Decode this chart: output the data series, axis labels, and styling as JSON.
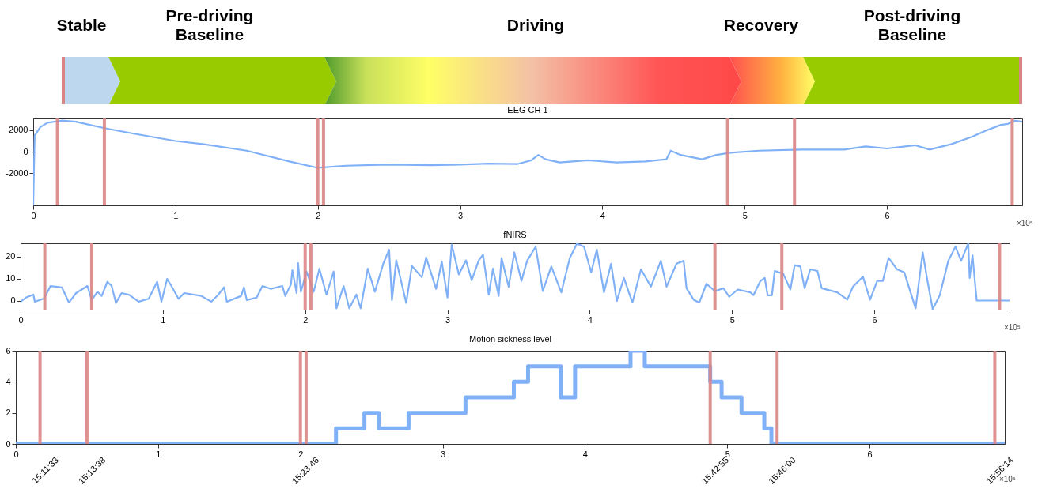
{
  "chart_data": [
    {
      "type": "other",
      "annotations": [
        "Stable",
        "Pre-driving Baseline",
        "Driving",
        "Recovery",
        "Post-driving Baseline"
      ]
    },
    {
      "type": "line",
      "title": "EEG CH 1",
      "color": "#80b1f7",
      "grid": false,
      "xlim": [
        0,
        6.95
      ],
      "xticks": [
        0,
        1,
        2,
        3,
        4,
        5,
        6
      ],
      "ylim": [
        -5000,
        3100
      ],
      "yticks": [
        -2000,
        0,
        2000
      ],
      "annotations": [
        "×10⁵"
      ],
      "x": [
        0,
        0.01,
        0.05,
        0.1,
        0.2,
        0.3,
        0.5,
        0.7,
        1.0,
        1.2,
        1.5,
        1.8,
        2.0,
        2.2,
        2.5,
        2.8,
        3.0,
        3.2,
        3.4,
        3.5,
        3.55,
        3.6,
        3.7,
        3.9,
        4.1,
        4.3,
        4.45,
        4.48,
        4.55,
        4.7,
        4.8,
        4.9,
        5.1,
        5.4,
        5.7,
        5.85,
        6.0,
        6.2,
        6.3,
        6.45,
        6.6,
        6.7,
        6.8,
        6.85,
        6.9,
        6.95
      ],
      "values": [
        -5000,
        1500,
        2300,
        2700,
        2900,
        2800,
        2200,
        1700,
        1000,
        700,
        100,
        -900,
        -1500,
        -1300,
        -1200,
        -1250,
        -1200,
        -1100,
        -1150,
        -800,
        -300,
        -700,
        -1000,
        -800,
        -1000,
        -900,
        -700,
        100,
        -300,
        -700,
        -300,
        -100,
        100,
        200,
        200,
        500,
        300,
        600,
        200,
        700,
        1400,
        2000,
        2500,
        2600,
        2900,
        2800
      ],
      "ref_lines": [
        {
          "axis": "x",
          "value": 0.17,
          "color": "#d98585"
        },
        {
          "axis": "x",
          "value": 0.5,
          "color": "#d98585"
        },
        {
          "axis": "x",
          "value": 2.0,
          "color": "#d98585"
        },
        {
          "axis": "x",
          "value": 2.04,
          "color": "#d98585"
        },
        {
          "axis": "x",
          "value": 4.88,
          "color": "#d98585"
        },
        {
          "axis": "x",
          "value": 5.35,
          "color": "#d98585"
        },
        {
          "axis": "x",
          "value": 6.88,
          "color": "#d98585"
        }
      ]
    },
    {
      "type": "line",
      "title": "fNIRS",
      "color": "#80b1f7",
      "grid": false,
      "xlim": [
        0,
        6.95
      ],
      "xticks": [
        0,
        1,
        2,
        3,
        4,
        5,
        6
      ],
      "ylim": [
        -4,
        26
      ],
      "yticks": [
        0,
        10,
        20
      ],
      "annotations": [
        "×10⁵"
      ],
      "x": [
        0,
        0.04,
        0.09,
        0.1,
        0.16,
        0.18,
        0.21,
        0.29,
        0.34,
        0.39,
        0.47,
        0.5,
        0.54,
        0.57,
        0.61,
        0.64,
        0.67,
        0.71,
        0.76,
        0.83,
        0.9,
        0.96,
        0.99,
        1.03,
        1.06,
        1.11,
        1.15,
        1.27,
        1.34,
        1.39,
        1.43,
        1.45,
        1.55,
        1.57,
        1.59,
        1.66,
        1.7,
        1.76,
        1.84,
        1.86,
        1.9,
        1.91,
        1.94,
        1.95,
        1.97,
        2.01,
        2.06,
        2.1,
        2.15,
        2.2,
        2.22,
        2.27,
        2.31,
        2.36,
        2.39,
        2.44,
        2.49,
        2.55,
        2.59,
        2.61,
        2.64,
        2.71,
        2.75,
        2.82,
        2.85,
        2.92,
        2.96,
        3.0,
        3.03,
        3.08,
        3.13,
        3.17,
        3.22,
        3.25,
        3.29,
        3.32,
        3.36,
        3.38,
        3.43,
        3.47,
        3.52,
        3.56,
        3.62,
        3.67,
        3.73,
        3.8,
        3.86,
        3.91,
        3.96,
        4.01,
        4.05,
        4.1,
        4.15,
        4.19,
        4.24,
        4.3,
        4.36,
        4.43,
        4.5,
        4.54,
        4.61,
        4.66,
        4.68,
        4.73,
        4.77,
        4.82,
        4.88,
        4.94,
        4.98,
        5.04,
        5.13,
        5.15,
        5.2,
        5.23,
        5.25,
        5.28,
        5.3,
        5.36,
        5.41,
        5.44,
        5.48,
        5.51,
        5.55,
        5.6,
        5.63,
        5.74,
        5.81,
        5.85,
        5.92,
        5.97,
        6.02,
        6.06,
        6.1,
        6.16,
        6.21,
        6.29,
        6.34,
        6.37,
        6.41,
        6.46,
        6.52,
        6.57,
        6.61,
        6.66,
        6.67,
        6.69,
        6.71,
        6.72,
        6.9,
        6.95
      ],
      "values": [
        -0.4,
        1.5,
        2.8,
        -0.4,
        0.9,
        2.8,
        6.7,
        6.1,
        -0.8,
        3.5,
        6.7,
        0.3,
        4.1,
        2.2,
        8.6,
        6.7,
        -1.0,
        3.5,
        2.8,
        -0.4,
        0.9,
        8.6,
        -0.4,
        9.9,
        6.7,
        0.9,
        3.5,
        2.2,
        -0.4,
        2.8,
        6.1,
        -0.4,
        2.2,
        6.1,
        0.3,
        1.5,
        6.7,
        5.4,
        6.7,
        2.2,
        7.4,
        13.8,
        3.5,
        17.0,
        4.1,
        13.2,
        4.1,
        14.5,
        2.8,
        13.2,
        -3.4,
        6.7,
        -3.4,
        2.8,
        -3.4,
        14.5,
        4.1,
        17.0,
        23.1,
        0.3,
        18.3,
        -1.0,
        15.7,
        10.6,
        19.6,
        5.4,
        17.7,
        1.5,
        25.4,
        11.9,
        18.3,
        9.3,
        18.3,
        20.9,
        2.8,
        14.5,
        2.2,
        19.4,
        6.4,
        21.9,
        9.0,
        18.1,
        24.5,
        4.4,
        15.5,
        3.8,
        19.4,
        25.8,
        24.5,
        12.9,
        23.2,
        3.8,
        16.8,
        -0.1,
        10.3,
        -0.8,
        14.2,
        6.4,
        18.1,
        6.4,
        16.8,
        18.1,
        5.7,
        0.5,
        -0.8,
        7.7,
        4.4,
        5.7,
        1.8,
        5.1,
        3.8,
        2.5,
        9.0,
        10.3,
        2.5,
        2.5,
        13.5,
        12.2,
        5.1,
        16.1,
        15.5,
        5.7,
        14.2,
        13.5,
        5.7,
        3.8,
        0.5,
        6.4,
        10.9,
        0.5,
        9.0,
        9.0,
        19.4,
        14.2,
        12.9,
        -3.4,
        21.9,
        10.3,
        -3.8,
        2.5,
        18.1,
        24.5,
        18.1,
        25.9,
        10.3,
        20.6,
        6.4,
        0.1,
        0.1,
        0.1
      ],
      "ref_lines": [
        {
          "axis": "x",
          "value": 0.17,
          "color": "#d98585"
        },
        {
          "axis": "x",
          "value": 0.5,
          "color": "#d98585"
        },
        {
          "axis": "x",
          "value": 2.0,
          "color": "#d98585"
        },
        {
          "axis": "x",
          "value": 2.04,
          "color": "#d98585"
        },
        {
          "axis": "x",
          "value": 4.88,
          "color": "#d98585"
        },
        {
          "axis": "x",
          "value": 5.35,
          "color": "#d98585"
        },
        {
          "axis": "x",
          "value": 6.88,
          "color": "#d98585"
        }
      ]
    },
    {
      "type": "step",
      "title": "Motion sickness level",
      "color": "#80b1f7",
      "grid": false,
      "xlim": [
        0,
        6.95
      ],
      "xticks": [
        0,
        1,
        2,
        3,
        4,
        5,
        6
      ],
      "ylim": [
        0,
        6
      ],
      "yticks": [
        0,
        2,
        4,
        6
      ],
      "annotations": [
        "×10⁵",
        {
          "text": "15:11:33",
          "x": 0.17,
          "y": 0
        },
        {
          "text": "15:13:38",
          "x": 0.5,
          "y": 0
        },
        {
          "text": "15:23:46",
          "x": 2.0,
          "y": 0
        },
        {
          "text": "15:42:55",
          "x": 4.88,
          "y": 0
        },
        {
          "text": "15:46:00",
          "x": 5.35,
          "y": 0
        },
        {
          "text": "15:56:14",
          "x": 6.88,
          "y": 0
        }
      ],
      "x": [
        0,
        2.25,
        2.45,
        2.55,
        2.76,
        3.16,
        3.5,
        3.6,
        3.83,
        3.93,
        4.32,
        4.42,
        4.88,
        4.96,
        5.1,
        5.26,
        5.31,
        6.95
      ],
      "values": [
        0,
        1,
        2,
        1,
        2,
        3,
        4,
        5,
        3,
        5,
        6,
        5,
        4,
        3,
        2,
        1,
        0,
        0
      ],
      "ref_lines": [
        {
          "axis": "x",
          "value": 0.17,
          "color": "#d98585"
        },
        {
          "axis": "x",
          "value": 0.5,
          "color": "#d98585"
        },
        {
          "axis": "x",
          "value": 2.0,
          "color": "#d98585"
        },
        {
          "axis": "x",
          "value": 2.04,
          "color": "#d98585"
        },
        {
          "axis": "x",
          "value": 4.88,
          "color": "#d98585"
        },
        {
          "axis": "x",
          "value": 5.35,
          "color": "#d98585"
        },
        {
          "axis": "x",
          "value": 6.88,
          "color": "#d98585"
        }
      ]
    }
  ]
}
